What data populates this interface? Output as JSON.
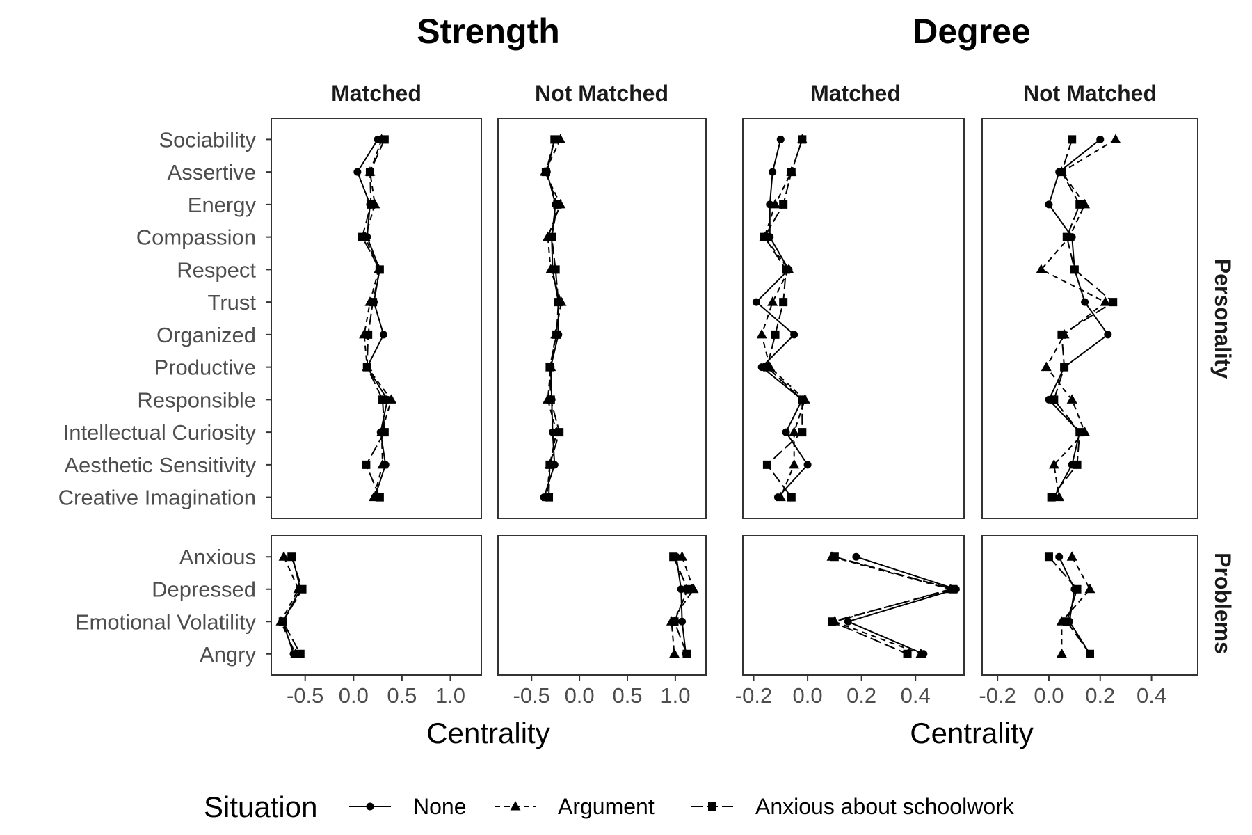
{
  "chart_data": {
    "type": "line",
    "group_titles": [
      "Strength",
      "Degree"
    ],
    "column_strips": [
      "Matched",
      "Not Matched",
      "Matched",
      "Not Matched"
    ],
    "row_strips": [
      "Personality",
      "Problems"
    ],
    "xlabel": "Centrality",
    "legend": {
      "title": "Situation",
      "placement": "bottom",
      "entries": [
        "None",
        "Argument",
        "Anxious about schoolwork"
      ]
    },
    "series_styles": [
      {
        "name": "None",
        "marker": "circle",
        "line": "solid"
      },
      {
        "name": "Argument",
        "marker": "triangle",
        "line": "dashed"
      },
      {
        "name": "Anxious about schoolwork",
        "marker": "square",
        "line": "longdash"
      }
    ],
    "rows": [
      {
        "strip": "Personality",
        "categories": [
          "Sociability",
          "Assertive",
          "Energy",
          "Compassion",
          "Respect",
          "Trust",
          "Organized",
          "Productive",
          "Responsible",
          "Intellectual Curiosity",
          "Aesthetic Sensitivity",
          "Creative Imagination"
        ]
      },
      {
        "strip": "Problems",
        "categories": [
          "Anxious",
          "Depressed",
          "Emotional Volatility",
          "Angry"
        ]
      }
    ],
    "panels": [
      {
        "measure": "Strength",
        "column": "Matched",
        "xlim": [
          -0.85,
          1.32
        ],
        "xticks": [
          -0.5,
          0.0,
          0.5,
          1.0
        ],
        "xtick_labels": [
          "-0.5",
          "0.0",
          "0.5",
          "1.0"
        ],
        "values": [
          [
            [
              0.25,
              0.04,
              0.17,
              0.14,
              0.27,
              0.21,
              0.31,
              0.14,
              0.35,
              0.28,
              0.33,
              0.22
            ],
            [
              -0.63,
              -0.55,
              -0.73,
              -0.62
            ]
          ],
          [
            [
              0.29,
              0.17,
              0.22,
              0.12,
              0.26,
              0.17,
              0.11,
              0.14,
              0.39,
              0.29,
              0.3,
              0.21
            ],
            [
              -0.72,
              -0.57,
              -0.75,
              -0.6
            ]
          ],
          [
            [
              0.32,
              0.17,
              0.18,
              0.09,
              0.27,
              0.2,
              0.15,
              0.14,
              0.3,
              0.32,
              0.13,
              0.27
            ],
            [
              -0.64,
              -0.53,
              -0.73,
              -0.55
            ]
          ]
        ]
      },
      {
        "measure": "Strength",
        "column": "Not Matched",
        "xlim": [
          -0.85,
          1.32
        ],
        "xticks": [
          -0.5,
          0.0,
          0.5,
          1.0
        ],
        "xtick_labels": [
          "-0.5",
          "0.0",
          "0.5",
          "1.0"
        ],
        "values": [
          [
            [
              -0.26,
              -0.34,
              -0.25,
              -0.29,
              -0.28,
              -0.22,
              -0.22,
              -0.3,
              -0.29,
              -0.28,
              -0.26,
              -0.37
            ],
            [
              1.01,
              1.06,
              1.07,
              1.11
            ]
          ],
          [
            [
              -0.2,
              -0.36,
              -0.2,
              -0.33,
              -0.3,
              -0.19,
              -0.25,
              -0.3,
              -0.33,
              -0.24,
              -0.31,
              -0.34
            ],
            [
              1.07,
              1.19,
              0.96,
              0.99
            ]
          ],
          [
            [
              -0.26,
              -0.35,
              -0.23,
              -0.29,
              -0.25,
              -0.22,
              -0.24,
              -0.31,
              -0.3,
              -0.21,
              -0.31,
              -0.32
            ],
            [
              0.98,
              1.13,
              0.99,
              1.12
            ]
          ]
        ]
      },
      {
        "measure": "Degree",
        "column": "Matched",
        "xlim": [
          -0.24,
          0.58
        ],
        "xticks": [
          -0.2,
          0.0,
          0.2,
          0.4
        ],
        "xtick_labels": [
          "-0.2",
          "0.0",
          "0.2",
          "0.4"
        ],
        "values": [
          [
            [
              -0.1,
              -0.13,
              -0.14,
              -0.14,
              -0.07,
              -0.19,
              -0.05,
              -0.17,
              -0.02,
              -0.08,
              0.0,
              -0.11
            ],
            [
              0.18,
              0.55,
              0.15,
              0.43
            ]
          ],
          [
            [
              -0.02,
              -0.06,
              -0.12,
              -0.16,
              -0.07,
              -0.13,
              -0.17,
              -0.14,
              -0.01,
              -0.05,
              -0.05,
              -0.1
            ],
            [
              0.09,
              0.53,
              0.1,
              0.42
            ]
          ],
          [
            [
              -0.02,
              -0.06,
              -0.09,
              -0.16,
              -0.08,
              -0.09,
              -0.12,
              -0.15,
              -0.02,
              -0.02,
              -0.15,
              -0.06
            ],
            [
              0.1,
              0.54,
              0.09,
              0.37
            ]
          ]
        ]
      },
      {
        "measure": "Degree",
        "column": "Not Matched",
        "xlim": [
          -0.26,
          0.58
        ],
        "xticks": [
          -0.2,
          0.0,
          0.2,
          0.4
        ],
        "xtick_labels": [
          "-0.2",
          "0.0",
          "0.2",
          "0.4"
        ],
        "values": [
          [
            [
              0.2,
              0.04,
              0.0,
              0.09,
              0.1,
              0.14,
              0.23,
              0.06,
              0.0,
              0.12,
              0.09,
              0.02
            ],
            [
              0.04,
              0.1,
              0.08,
              0.16
            ]
          ],
          [
            [
              0.26,
              0.05,
              0.14,
              0.08,
              -0.03,
              0.22,
              0.06,
              -0.01,
              0.09,
              0.14,
              0.02,
              0.04
            ],
            [
              0.09,
              0.16,
              0.05,
              0.05
            ]
          ],
          [
            [
              0.09,
              0.05,
              0.12,
              0.07,
              0.1,
              0.25,
              0.05,
              0.06,
              0.02,
              0.12,
              0.11,
              0.01
            ],
            [
              0.0,
              0.11,
              0.07,
              0.16
            ]
          ]
        ]
      }
    ]
  }
}
